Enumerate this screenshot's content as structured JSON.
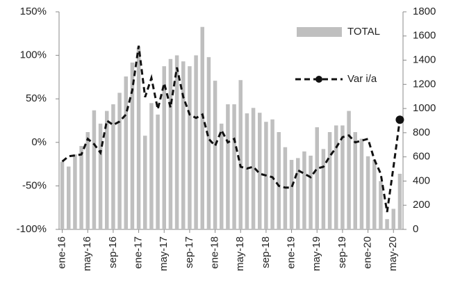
{
  "chart_data": {
    "type": "bar_line",
    "categories": [
      "ene-16",
      null,
      null,
      null,
      "may-16",
      null,
      null,
      null,
      "sep-16",
      null,
      null,
      null,
      "ene-17",
      null,
      null,
      null,
      "may-17",
      null,
      null,
      null,
      "sep-17",
      null,
      null,
      null,
      "ene-18",
      null,
      null,
      null,
      "may-18",
      null,
      null,
      null,
      "sep-18",
      null,
      null,
      null,
      "ene-19",
      null,
      null,
      null,
      "may-19",
      null,
      null,
      null,
      "sep-19",
      null,
      null,
      null,
      "ene-20",
      null,
      null,
      null,
      "may-20",
      null
    ],
    "series": [
      {
        "name": "TOTAL",
        "type": "bar",
        "axis": "y2",
        "color": "#bfbfbf",
        "values": [
          560,
          520,
          620,
          690,
          805,
          985,
          875,
          980,
          1035,
          1130,
          1265,
          1380,
          1505,
          775,
          1045,
          950,
          1350,
          1410,
          1440,
          1390,
          1350,
          1440,
          1675,
          1425,
          1230,
          875,
          1035,
          1035,
          1235,
          960,
          1005,
          965,
          890,
          910,
          805,
          680,
          575,
          590,
          645,
          610,
          845,
          665,
          805,
          860,
          860,
          980,
          805,
          750,
          605,
          575,
          400,
          85,
          170,
          460
        ]
      },
      {
        "name": "Var i/a",
        "type": "line",
        "axis": "y",
        "color": "#111111",
        "values": [
          -22,
          -16,
          -15,
          -14,
          4,
          -2,
          -12,
          25,
          20,
          24,
          32,
          60,
          111,
          52,
          74,
          38,
          68,
          40,
          86,
          52,
          32,
          28,
          32,
          4,
          -4,
          14,
          0,
          4,
          -28,
          -30,
          -28,
          -36,
          -38,
          -40,
          -50,
          -52,
          -52,
          -32,
          -36,
          -40,
          -30,
          -28,
          -16,
          -6,
          6,
          8,
          0,
          2,
          4,
          -20,
          -36,
          -80,
          -28,
          26
        ]
      }
    ],
    "ylim": [
      -100,
      150
    ],
    "yticks": [
      {
        "value": -100,
        "label": "-100%"
      },
      {
        "value": -50,
        "label": "-50%"
      },
      {
        "value": 0,
        "label": "0%"
      },
      {
        "value": 50,
        "label": "50%"
      },
      {
        "value": 100,
        "label": "100%"
      },
      {
        "value": 150,
        "label": "150%"
      }
    ],
    "y2lim": [
      0,
      1800
    ],
    "y2ticks": [
      0,
      200,
      400,
      600,
      800,
      1000,
      1200,
      1400,
      1600,
      1800
    ],
    "grid": false
  }
}
